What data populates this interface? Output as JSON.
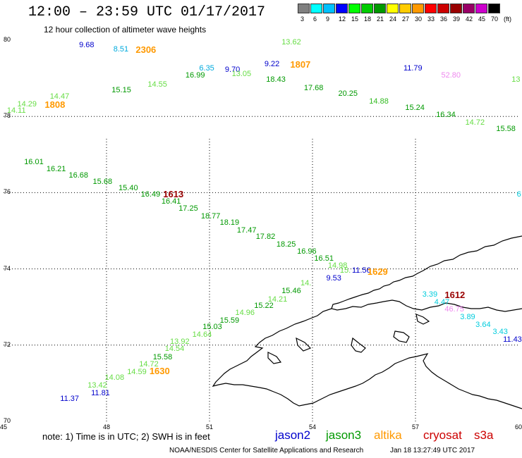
{
  "header": {
    "title": "12:00 – 23:59 UTC 01/17/2017",
    "subtitle": "12 hour collection of altimeter wave heights"
  },
  "legend": {
    "labels": [
      "3",
      "6",
      "9",
      "12",
      "15",
      "18",
      "21",
      "24",
      "27",
      "30",
      "33",
      "36",
      "39",
      "42",
      "45",
      "70",
      "(ft)"
    ],
    "colors": [
      "#808080",
      "#00ffff",
      "#00c0ff",
      "#0000ff",
      "#00ff00",
      "#00cc00",
      "#009900",
      "#ffff00",
      "#ffcc00",
      "#ff9900",
      "#ff0000",
      "#cc0000",
      "#990000",
      "#990066",
      "#cc00cc",
      "#000000"
    ]
  },
  "axes": {
    "lat_labels": [
      "80",
      "78",
      "76",
      "74",
      "72",
      "70"
    ],
    "lon_labels": [
      "45",
      "48",
      "51",
      "54",
      "57",
      "60"
    ],
    "lon_min": 45,
    "lon_max": 60,
    "lat_min": 70,
    "lat_max": 80
  },
  "satellites": [
    {
      "name": "jason2",
      "color": "#0000cc"
    },
    {
      "name": "jason3",
      "color": "#009900"
    },
    {
      "name": "altika",
      "color": "#ff9900"
    },
    {
      "name": "cryosat",
      "color": "#cc0000"
    },
    {
      "name": "s3a",
      "color": "#cc0000"
    }
  ],
  "note": "note: 1) Time is in UTC; 2) SWH is in feet",
  "footer": {
    "center": "NOAA/NESDIS Center for Satellite Applications and Research",
    "time": "Jan 18 13:27:49 UTC 2017"
  },
  "wave_heights": [
    {
      "text": "9.68",
      "color": "#0000cc",
      "lon": 47.2,
      "lat": 79.85
    },
    {
      "text": "8.51",
      "color": "#00aadd",
      "lon": 48.2,
      "lat": 79.75
    },
    {
      "text": "2306",
      "color": "#ff9900",
      "lon": 48.85,
      "lat": 79.75,
      "big": true
    },
    {
      "text": "13.62",
      "color": "#66dd44",
      "lon": 53.1,
      "lat": 79.93
    },
    {
      "text": "6.35",
      "color": "#00aadd",
      "lon": 50.7,
      "lat": 79.25
    },
    {
      "text": "9.70",
      "color": "#0000cc",
      "lon": 51.45,
      "lat": 79.2
    },
    {
      "text": "13.05",
      "color": "#66dd44",
      "lon": 51.65,
      "lat": 79.1
    },
    {
      "text": "9.22",
      "color": "#0000cc",
      "lon": 52.6,
      "lat": 79.35
    },
    {
      "text": "1807",
      "color": "#ff9900",
      "lon": 53.35,
      "lat": 79.35,
      "big": true
    },
    {
      "text": "16.99",
      "color": "#009900",
      "lon": 50.3,
      "lat": 79.05
    },
    {
      "text": "18.43",
      "color": "#009900",
      "lon": 52.65,
      "lat": 78.95
    },
    {
      "text": "11.79",
      "color": "#0000cc",
      "lon": 56.65,
      "lat": 79.25
    },
    {
      "text": "52.80",
      "color": "#ee88ee",
      "lon": 57.75,
      "lat": 79.05
    },
    {
      "text": "13",
      "color": "#66dd44",
      "lon": 59.8,
      "lat": 78.95
    },
    {
      "text": "14.55",
      "color": "#66dd44",
      "lon": 49.2,
      "lat": 78.82
    },
    {
      "text": "17.68",
      "color": "#009900",
      "lon": 53.75,
      "lat": 78.72
    },
    {
      "text": "15.15",
      "color": "#009900",
      "lon": 48.15,
      "lat": 78.66
    },
    {
      "text": "20.25",
      "color": "#009900",
      "lon": 54.75,
      "lat": 78.57
    },
    {
      "text": "14.47",
      "color": "#66dd44",
      "lon": 46.35,
      "lat": 78.51
    },
    {
      "text": "14.88",
      "color": "#33bb22",
      "lon": 55.65,
      "lat": 78.38
    },
    {
      "text": "14.29",
      "color": "#66dd44",
      "lon": 45.4,
      "lat": 78.3
    },
    {
      "text": "1808",
      "color": "#ff9900",
      "lon": 46.2,
      "lat": 78.3,
      "big": true
    },
    {
      "text": "15.24",
      "color": "#009900",
      "lon": 56.7,
      "lat": 78.2
    },
    {
      "text": "14.11",
      "color": "#66dd44",
      "lon": 45.1,
      "lat": 78.13
    },
    {
      "text": "16.34",
      "color": "#009900",
      "lon": 57.6,
      "lat": 78.03
    },
    {
      "text": "14.72",
      "color": "#66dd44",
      "lon": 58.45,
      "lat": 77.82
    },
    {
      "text": "15.58",
      "color": "#009900",
      "lon": 59.35,
      "lat": 77.65
    },
    {
      "text": "16.01",
      "color": "#009900",
      "lon": 45.6,
      "lat": 76.78
    },
    {
      "text": "16.21",
      "color": "#009900",
      "lon": 46.25,
      "lat": 76.6
    },
    {
      "text": "16.68",
      "color": "#009900",
      "lon": 46.9,
      "lat": 76.44
    },
    {
      "text": "15.68",
      "color": "#009900",
      "lon": 47.6,
      "lat": 76.27
    },
    {
      "text": "15.40",
      "color": "#009900",
      "lon": 48.35,
      "lat": 76.1
    },
    {
      "text": "16.49",
      "color": "#009900",
      "lon": 49.0,
      "lat": 75.93
    },
    {
      "text": "1613",
      "color": "#990000",
      "lon": 49.65,
      "lat": 75.96,
      "big": true
    },
    {
      "text": "16.41",
      "color": "#009900",
      "lon": 49.6,
      "lat": 75.75
    },
    {
      "text": "17.25",
      "color": "#009900",
      "lon": 50.1,
      "lat": 75.56
    },
    {
      "text": "18.77",
      "color": "#009900",
      "lon": 50.75,
      "lat": 75.36
    },
    {
      "text": "18.19",
      "color": "#009900",
      "lon": 51.3,
      "lat": 75.19
    },
    {
      "text": "17.47",
      "color": "#009900",
      "lon": 51.8,
      "lat": 75.0
    },
    {
      "text": "17.82",
      "color": "#009900",
      "lon": 52.35,
      "lat": 74.82
    },
    {
      "text": "18.25",
      "color": "#009900",
      "lon": 52.95,
      "lat": 74.63
    },
    {
      "text": "16.96",
      "color": "#009900",
      "lon": 53.55,
      "lat": 74.44
    },
    {
      "text": "16.51",
      "color": "#009900",
      "lon": 54.05,
      "lat": 74.25
    },
    {
      "text": "14.98",
      "color": "#66dd44",
      "lon": 54.45,
      "lat": 74.06
    },
    {
      "text": "15.",
      "color": "#66dd44",
      "lon": 54.8,
      "lat": 73.93
    },
    {
      "text": "11.56",
      "color": "#0000cc",
      "lon": 55.15,
      "lat": 73.93
    },
    {
      "text": "1629",
      "color": "#ff9900",
      "lon": 55.6,
      "lat": 73.92,
      "big": true
    },
    {
      "text": "9.53",
      "color": "#0000cc",
      "lon": 54.4,
      "lat": 73.73
    },
    {
      "text": "14.",
      "color": "#66dd44",
      "lon": 53.65,
      "lat": 73.6
    },
    {
      "text": "15.46",
      "color": "#009900",
      "lon": 53.1,
      "lat": 73.4
    },
    {
      "text": "14.21",
      "color": "#66dd44",
      "lon": 52.7,
      "lat": 73.18
    },
    {
      "text": "15.22",
      "color": "#009900",
      "lon": 52.3,
      "lat": 73.02
    },
    {
      "text": "14.96",
      "color": "#66dd44",
      "lon": 51.75,
      "lat": 72.82
    },
    {
      "text": "15.59",
      "color": "#009900",
      "lon": 51.3,
      "lat": 72.63
    },
    {
      "text": "15.03",
      "color": "#009900",
      "lon": 50.8,
      "lat": 72.45
    },
    {
      "text": "14.64",
      "color": "#66dd44",
      "lon": 50.5,
      "lat": 72.25
    },
    {
      "text": "13.92",
      "color": "#66dd44",
      "lon": 49.85,
      "lat": 72.07
    },
    {
      "text": "14.54",
      "color": "#66dd44",
      "lon": 49.7,
      "lat": 71.88
    },
    {
      "text": "15.58",
      "color": "#009900",
      "lon": 49.35,
      "lat": 71.67
    },
    {
      "text": "14.72",
      "color": "#66dd44",
      "lon": 48.95,
      "lat": 71.48
    },
    {
      "text": "14.59",
      "color": "#66dd44",
      "lon": 48.6,
      "lat": 71.28
    },
    {
      "text": "1630",
      "color": "#ff9900",
      "lon": 49.25,
      "lat": 71.32,
      "big": true
    },
    {
      "text": "14.08",
      "color": "#66dd44",
      "lon": 47.95,
      "lat": 71.12
    },
    {
      "text": "13.42",
      "color": "#66dd44",
      "lon": 47.45,
      "lat": 70.92
    },
    {
      "text": "11.81",
      "color": "#0000cc",
      "lon": 47.55,
      "lat": 70.72
    },
    {
      "text": "11.37",
      "color": "#0000cc",
      "lon": 46.65,
      "lat": 70.58
    },
    {
      "text": "3.39",
      "color": "#00ccdd",
      "lon": 57.2,
      "lat": 73.3
    },
    {
      "text": "1612",
      "color": "#990000",
      "lon": 57.85,
      "lat": 73.3,
      "big": true
    },
    {
      "text": "4.47",
      "color": "#00ccdd",
      "lon": 57.55,
      "lat": 73.11
    },
    {
      "text": "46.75",
      "color": "#ee88ee",
      "lon": 57.85,
      "lat": 72.92
    },
    {
      "text": "3.89",
      "color": "#00ccdd",
      "lon": 58.3,
      "lat": 72.71
    },
    {
      "text": "3.64",
      "color": "#00ccdd",
      "lon": 58.75,
      "lat": 72.51
    },
    {
      "text": "3.43",
      "color": "#00ccdd",
      "lon": 59.25,
      "lat": 72.32
    },
    {
      "text": "11.43",
      "color": "#0000cc",
      "lon": 59.55,
      "lat": 72.13
    },
    {
      "text": "6",
      "color": "#00ccdd",
      "lon": 59.95,
      "lat": 75.93
    }
  ]
}
